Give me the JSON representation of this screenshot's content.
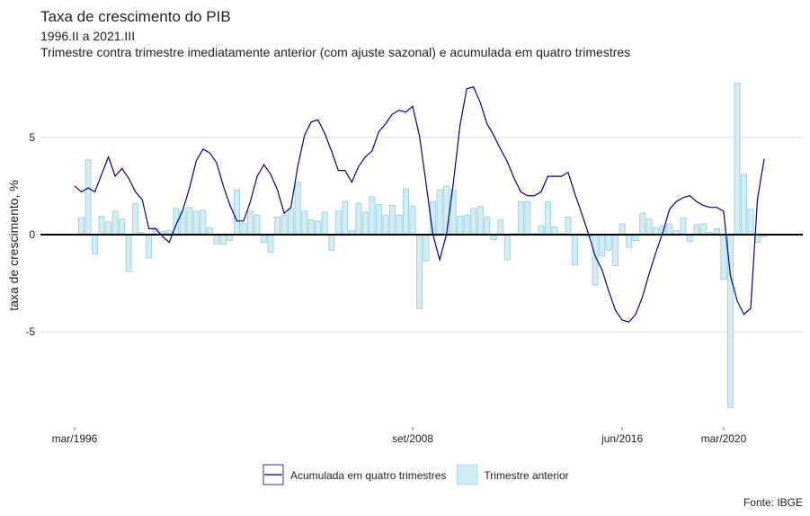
{
  "chart_data": {
    "type": "bar",
    "title": "Taxa de crescimento do PIB",
    "subtitle": [
      "1996.II a 2021.III",
      "Trimestre contra trimestre imediatamente anterior (com ajuste sazonal) e acumulada em quatro trimestres"
    ],
    "y_label": "taxa de crescimento, %",
    "source": "Fonte: IBGE",
    "categories": [
      "mar/1996",
      null,
      null,
      null,
      null,
      null,
      null,
      null,
      null,
      null,
      null,
      null,
      null,
      null,
      null,
      null,
      null,
      null,
      null,
      null,
      null,
      null,
      null,
      null,
      null,
      null,
      null,
      null,
      null,
      null,
      null,
      null,
      null,
      null,
      null,
      null,
      null,
      null,
      null,
      null,
      null,
      null,
      null,
      null,
      null,
      null,
      null,
      null,
      null,
      null,
      "set/2008",
      null,
      null,
      null,
      null,
      null,
      null,
      null,
      null,
      null,
      null,
      null,
      null,
      null,
      null,
      null,
      null,
      null,
      null,
      null,
      null,
      null,
      null,
      null,
      null,
      null,
      null,
      null,
      null,
      null,
      null,
      "jun/2016",
      null,
      null,
      null,
      null,
      null,
      null,
      null,
      null,
      null,
      null,
      null,
      null,
      null,
      null,
      "mar/2020",
      null,
      null,
      null,
      null,
      null,
      null
    ],
    "series": [
      {
        "name": "Acumulada em quatro trimestres",
        "type": "line",
        "color": "#00008b",
        "values": [
          2.5,
          2.2,
          2.4,
          2.2,
          3.1,
          4.0,
          3.0,
          3.4,
          2.9,
          2.2,
          1.8,
          0.3,
          0.3,
          -0.1,
          -0.4,
          0.5,
          1.25,
          2.4,
          3.8,
          4.4,
          4.2,
          3.7,
          2.5,
          1.5,
          0.7,
          0.7,
          1.7,
          3.0,
          3.6,
          3.1,
          2.3,
          1.1,
          1.4,
          3.5,
          5.1,
          5.8,
          5.9,
          5.2,
          4.3,
          3.3,
          3.3,
          2.7,
          3.5,
          4.0,
          4.3,
          5.3,
          5.7,
          6.2,
          6.4,
          6.3,
          6.6,
          5.1,
          2.6,
          0.0,
          -1.3,
          0.0,
          2.6,
          5.6,
          7.5,
          7.6,
          6.8,
          5.7,
          5.1,
          4.4,
          3.75,
          2.9,
          2.2,
          2.0,
          2.0,
          2.2,
          3.0,
          3.0,
          3.0,
          3.2,
          2.1,
          1.1,
          0.05,
          -1.1,
          -1.8,
          -2.9,
          -3.9,
          -4.4,
          -4.5,
          -4.1,
          -3.2,
          -2.0,
          -0.9,
          0.1,
          1.3,
          1.7,
          1.9,
          2.0,
          1.7,
          1.5,
          1.4,
          1.4,
          1.2,
          -2.1,
          -3.4,
          -4.1,
          -3.8,
          1.8,
          3.9
        ]
      },
      {
        "name": "Trimestre anterior",
        "type": "bar",
        "color": "#d4edf5",
        "stroke": "#9fd3e3",
        "values": [
          null,
          0.85,
          3.85,
          -1.0,
          0.95,
          0.65,
          1.2,
          0.8,
          -1.9,
          1.6,
          0.1,
          -1.2,
          0.35,
          0.15,
          0.2,
          1.35,
          1.2,
          1.4,
          1.2,
          1.25,
          0.35,
          -0.5,
          -0.5,
          -0.3,
          2.3,
          0.6,
          1.2,
          1.0,
          -0.4,
          -0.9,
          0.9,
          1.0,
          1.3,
          2.7,
          1.2,
          0.75,
          0.7,
          1.15,
          -0.8,
          1.2,
          1.7,
          0.2,
          1.6,
          1.15,
          1.95,
          1.55,
          1.0,
          1.5,
          1.0,
          2.35,
          1.45,
          -3.8,
          -1.35,
          1.7,
          2.3,
          2.5,
          2.3,
          0.95,
          1.0,
          1.35,
          1.45,
          0.9,
          -0.25,
          0.75,
          -1.3,
          0.05,
          1.7,
          1.7,
          0.05,
          0.45,
          1.7,
          0.4,
          0.05,
          0.9,
          -1.55,
          -0.05,
          -0.1,
          -2.6,
          -1.1,
          -0.8,
          -1.6,
          0.55,
          -0.65,
          -0.3,
          1.1,
          0.8,
          0.35,
          0.45,
          0.55,
          0.2,
          0.85,
          -0.35,
          0.5,
          0.55,
          0.1,
          0.3,
          -2.3,
          -8.9,
          7.8,
          3.1,
          1.3,
          -0.4,
          -0.1
        ]
      }
    ],
    "ylim": [
      -9.9,
      8.0
    ],
    "yticks": [
      -5,
      0,
      5
    ],
    "grid": true,
    "legend": "bottom"
  }
}
